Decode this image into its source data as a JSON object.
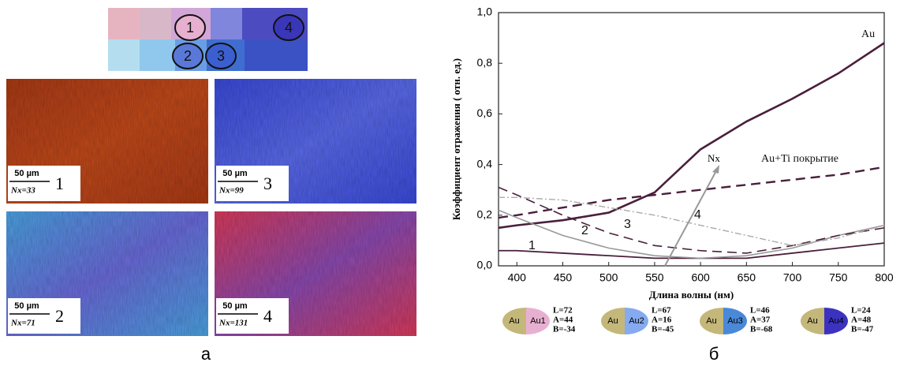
{
  "swatch_labels": [
    "1",
    "2",
    "3",
    "4"
  ],
  "micrographs": [
    {
      "scale": "50 µm",
      "count": "Nx=33",
      "number": "1"
    },
    {
      "scale": "50 µm",
      "count": "Nx=99",
      "number": "3"
    },
    {
      "scale": "50 µm",
      "count": "Nx=71",
      "number": "2"
    },
    {
      "scale": "50 µm",
      "count": "Nx=131",
      "number": "4"
    }
  ],
  "captions": [
    "а",
    "б"
  ],
  "chart_data": {
    "type": "line",
    "x_label": "Длина волны (нм)",
    "y_label": "Коэффициент отражения ( отн. ед.)",
    "xlim": [
      380,
      800
    ],
    "xticks": [
      400,
      450,
      500,
      550,
      600,
      650,
      700,
      750,
      800
    ],
    "ylim": [
      0,
      1
    ],
    "yticks": [
      {
        "value": 0,
        "label": "0,0"
      },
      {
        "value": 0.2,
        "label": "0,2"
      },
      {
        "value": 0.4,
        "label": "0,4"
      },
      {
        "value": 0.6,
        "label": "0,6"
      },
      {
        "value": 0.8,
        "label": "0,8"
      },
      {
        "value": 1,
        "label": "1,0"
      }
    ],
    "x": [
      380,
      400,
      450,
      500,
      550,
      600,
      650,
      700,
      750,
      800
    ],
    "series": [
      {
        "name": "Au",
        "color": "#4a1f3c",
        "width": 2.6,
        "line_style": "solid",
        "values": [
          0.15,
          0.16,
          0.18,
          0.21,
          0.29,
          0.46,
          0.57,
          0.66,
          0.76,
          0.88
        ]
      },
      {
        "name": "Au+Ti покрытие",
        "color": "#4a1f3c",
        "width": 2.4,
        "line_style": "dashed",
        "values": [
          0.19,
          0.2,
          0.23,
          0.26,
          0.28,
          0.3,
          0.32,
          0.34,
          0.36,
          0.39
        ]
      },
      {
        "name": "1",
        "color": "#4a1f3c",
        "width": 1.8,
        "line_style": "solid",
        "values": [
          0.06,
          0.06,
          0.05,
          0.04,
          0.03,
          0.03,
          0.03,
          0.05,
          0.07,
          0.09
        ]
      },
      {
        "name": "2",
        "color": "#999999",
        "width": 1.6,
        "line_style": "solid",
        "values": [
          0.22,
          0.19,
          0.12,
          0.07,
          0.04,
          0.03,
          0.04,
          0.07,
          0.12,
          0.16
        ]
      },
      {
        "name": "3",
        "color": "#4a1f3c",
        "width": 1.6,
        "line_style": "dashed",
        "values": [
          0.31,
          0.28,
          0.2,
          0.13,
          0.08,
          0.06,
          0.05,
          0.08,
          0.12,
          0.15
        ]
      },
      {
        "name": "4",
        "color": "#aaaaaa",
        "width": 1.4,
        "line_style": "dashdot",
        "values": [
          0.27,
          0.27,
          0.26,
          0.23,
          0.2,
          0.16,
          0.12,
          0.08,
          0.11,
          0.16
        ]
      }
    ],
    "arrow_label": "Nx",
    "color_samples": [
      {
        "left": "Au",
        "right": "Au1",
        "color": "#e8b0d0",
        "L": "L=72",
        "A": "A=44",
        "B": "B=-34"
      },
      {
        "left": "Au",
        "right": "Au2",
        "color": "#86aaf0",
        "L": "L=67",
        "A": "A=16",
        "B": "B=-45"
      },
      {
        "left": "Au",
        "right": "Au3",
        "color": "#4a88d8",
        "L": "L=46",
        "A": "A=37",
        "B": "B=-68"
      },
      {
        "left": "Au",
        "right": "Au4",
        "color": "#3b33c0",
        "L": "L=24",
        "A": "A=48",
        "B": "B=-47"
      }
    ]
  }
}
